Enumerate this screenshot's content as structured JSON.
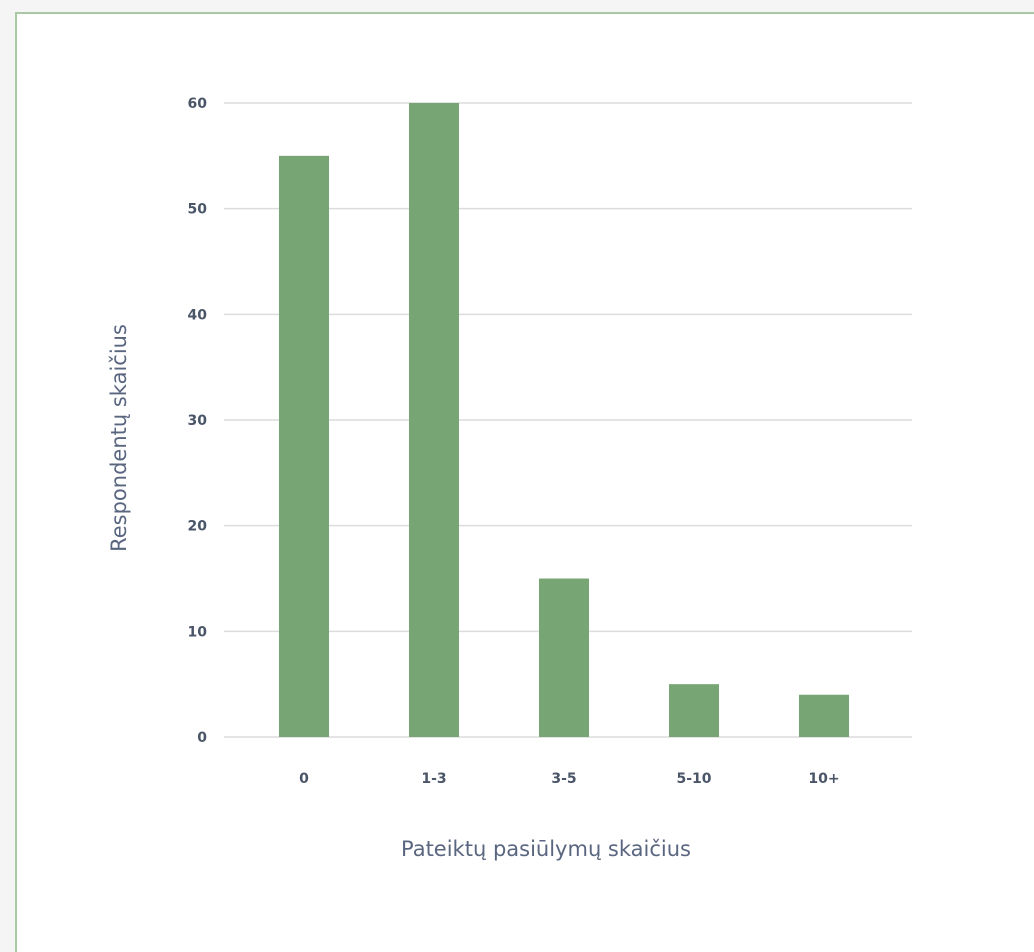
{
  "chart_data": {
    "type": "bar",
    "categories": [
      "0",
      "1-3",
      "3-5",
      "5-10",
      "10+"
    ],
    "values": [
      55,
      60,
      15,
      5,
      4
    ],
    "xlabel": "Pateiktų pasiūlymų skaičius",
    "ylabel": "Respondentų skaičius",
    "ylim": [
      0,
      60
    ],
    "yticks": [
      0,
      10,
      20,
      30,
      40,
      50,
      60
    ],
    "grid": true,
    "bar_color": "#78a574",
    "legend": "none"
  }
}
